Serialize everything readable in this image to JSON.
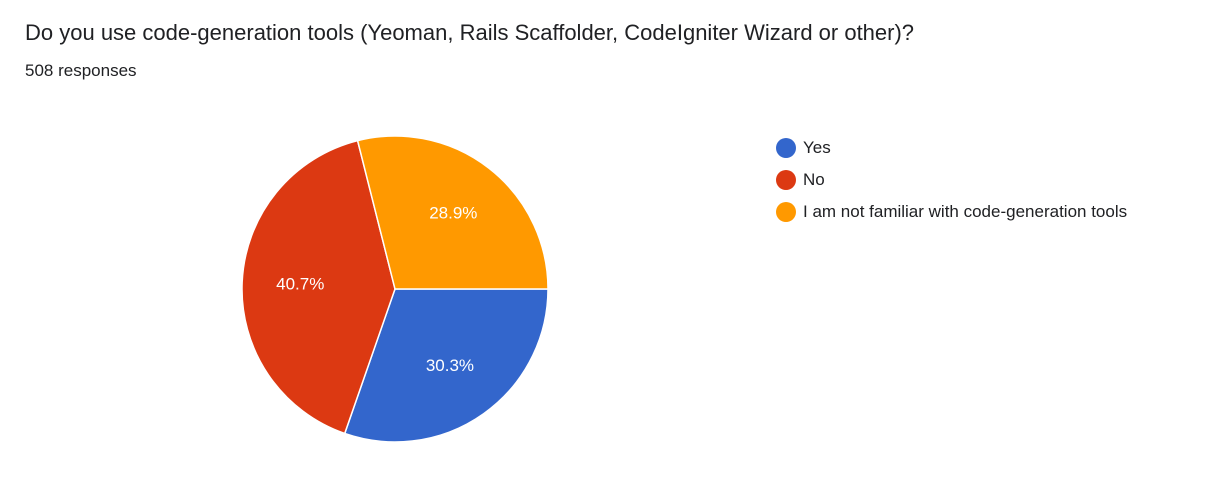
{
  "chart_data": {
    "type": "pie",
    "title": "Do you use code-generation tools (Yeoman, Rails Scaffolder, CodeIgniter Wizard or other)?",
    "subtitle": "508 responses",
    "categories": [
      "Yes",
      "No",
      "I am not familiar with code-generation tools"
    ],
    "values": [
      30.3,
      40.7,
      28.9
    ],
    "value_labels": [
      "30.3%",
      "40.7%",
      "28.9%"
    ],
    "colors": [
      "#3366cc",
      "#dc3912",
      "#ff9900"
    ],
    "legend": "right"
  }
}
